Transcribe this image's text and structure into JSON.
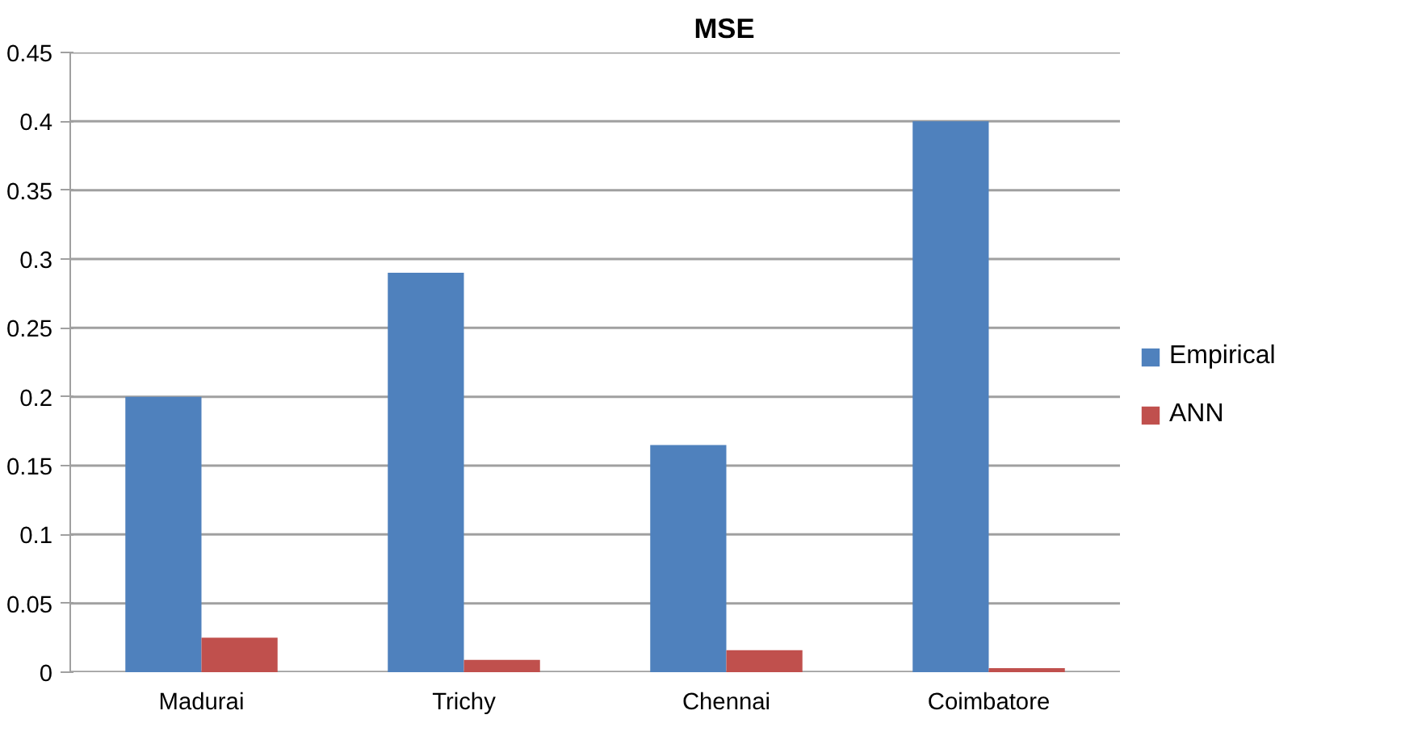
{
  "chart_data": {
    "type": "bar",
    "title": "MSE",
    "categories": [
      "Madurai",
      "Trichy",
      "Chennai",
      "Coimbatore"
    ],
    "series": [
      {
        "name": "Empirical",
        "color": "#4f81bd",
        "values": [
          0.2,
          0.29,
          0.165,
          0.4
        ]
      },
      {
        "name": "ANN",
        "color": "#c0504d",
        "values": [
          0.025,
          0.009,
          0.016,
          0.003
        ]
      }
    ],
    "ylim": [
      0,
      0.45
    ],
    "yticks": [
      0,
      0.05,
      0.1,
      0.15,
      0.2,
      0.25,
      0.3,
      0.35,
      0.4,
      0.45
    ],
    "grid": "y",
    "legend": "right"
  }
}
